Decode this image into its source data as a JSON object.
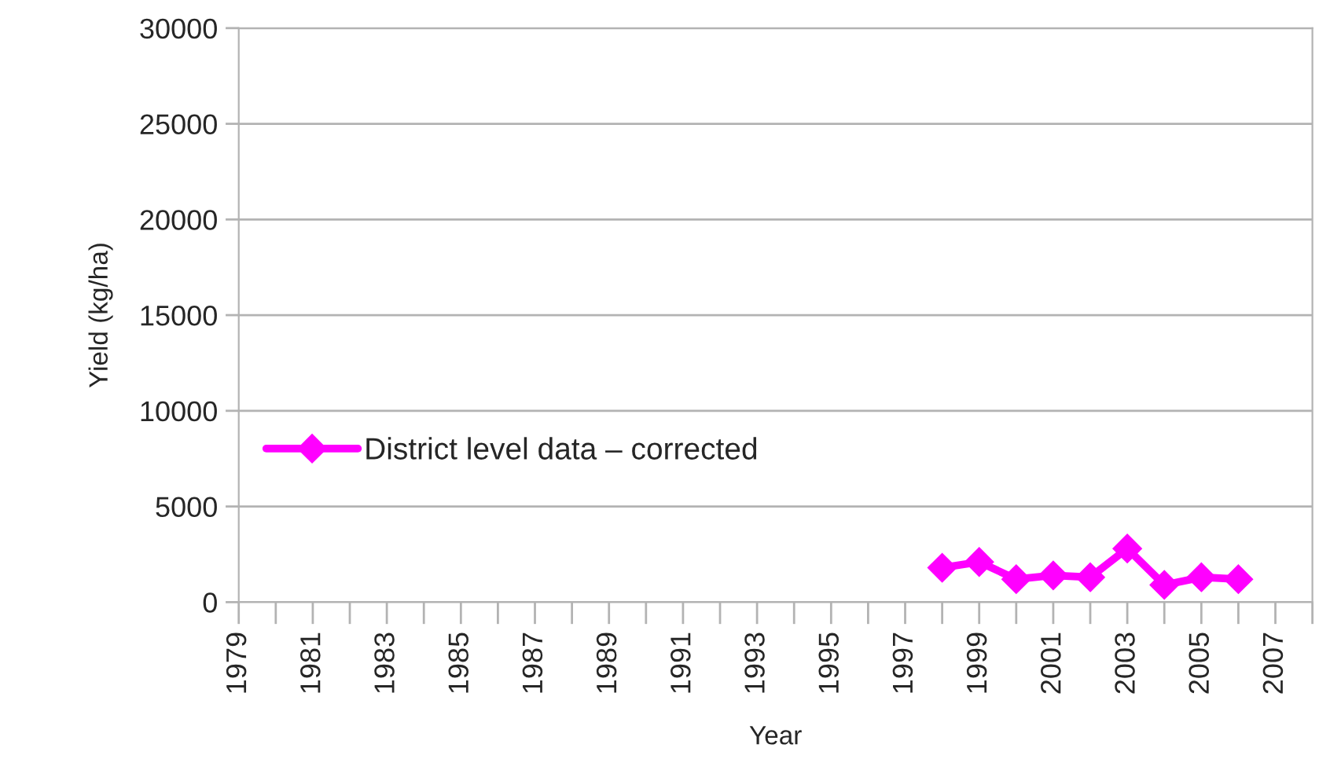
{
  "chart_data": {
    "type": "line",
    "xlabel": "Year",
    "ylabel": "Yield (kg/ha)",
    "x": [
      1998,
      1999,
      2000,
      2001,
      2002,
      2003,
      2004,
      2005,
      2006
    ],
    "series": [
      {
        "name": "District level data – corrected",
        "color": "#ff00ff",
        "values": [
          1800,
          2100,
          1200,
          1400,
          1300,
          2800,
          900,
          1300,
          1200
        ]
      }
    ],
    "xlim": [
      1979,
      2008
    ],
    "xticks": [
      1979,
      {
        "value": 1980,
        "label": null
      },
      1981,
      {
        "value": 1982,
        "label": null
      },
      1983,
      {
        "value": 1984,
        "label": null
      },
      1985,
      {
        "value": 1986,
        "label": null
      },
      1987,
      {
        "value": 1988,
        "label": null
      },
      1989,
      {
        "value": 1990,
        "label": null
      },
      1991,
      {
        "value": 1992,
        "label": null
      },
      1993,
      {
        "value": 1994,
        "label": null
      },
      1995,
      {
        "value": 1996,
        "label": null
      },
      1997,
      {
        "value": 1998,
        "label": null
      },
      1999,
      {
        "value": 2000,
        "label": null
      },
      2001,
      {
        "value": 2002,
        "label": null
      },
      2003,
      {
        "value": 2004,
        "label": null
      },
      2005,
      {
        "value": 2006,
        "label": null
      },
      2007,
      {
        "value": 2008,
        "label": null
      }
    ],
    "ylim": [
      0,
      30000
    ],
    "yticks": [
      0,
      5000,
      10000,
      15000,
      20000,
      25000,
      30000
    ],
    "grid": "y",
    "legend": "left",
    "marker": "diamond",
    "line_style": "solid"
  }
}
